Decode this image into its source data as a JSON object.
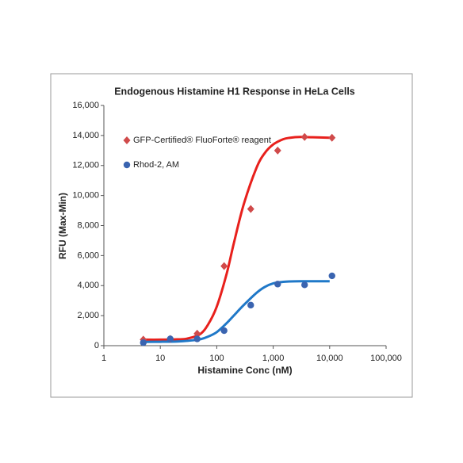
{
  "chart_data": {
    "type": "scatter",
    "title": "Endogenous Histamine H1 Response in HeLa Cells",
    "x_label": "Histamine Conc (nM)",
    "y_label": "RFU (Max-Min)",
    "x_scale": "log",
    "xlim": [
      1,
      100000
    ],
    "ylim": [
      0,
      16000
    ],
    "xticks": [
      1,
      10,
      100,
      {
        "value": 1000,
        "label": "1,000"
      },
      {
        "value": 10000,
        "label": "10,000"
      },
      {
        "value": 100000,
        "label": "100,000"
      }
    ],
    "yticks": [
      0,
      {
        "value": 2000,
        "label": "2,000"
      },
      {
        "value": 4000,
        "label": "4,000"
      },
      {
        "value": 6000,
        "label": "6,000"
      },
      {
        "value": 8000,
        "label": "8,000"
      },
      {
        "value": 10000,
        "label": "10,000"
      },
      {
        "value": 12000,
        "label": "12,000"
      },
      {
        "value": 14000,
        "label": "14,000"
      },
      {
        "value": 16000,
        "label": "16,000"
      }
    ],
    "grid": false,
    "legend": "upper left",
    "series": [
      {
        "name": "GFP-Certified® FluoForte® reagent",
        "color": "#d04a4a",
        "marker": "diamond",
        "x": [
          5,
          15,
          45,
          135,
          400,
          1200,
          3600,
          11000
        ],
        "values": [
          400,
          450,
          800,
          5300,
          9100,
          13000,
          13900,
          13850
        ]
      },
      {
        "name": "Rhod-2, AM",
        "color": "#3a64b0",
        "marker": "circle",
        "x": [
          5,
          15,
          45,
          135,
          400,
          1200,
          3600,
          11000
        ],
        "values": [
          200,
          450,
          450,
          1000,
          2700,
          4100,
          4050,
          4650
        ]
      }
    ],
    "fits": [
      {
        "color": "#e8201c",
        "x": [
          5,
          10,
          20,
          30,
          50,
          70,
          100,
          150,
          200,
          300,
          500,
          700,
          1000,
          1500,
          2000,
          3000,
          5000,
          10000
        ],
        "values": [
          400,
          400,
          420,
          470,
          750,
          1400,
          2600,
          4800,
          6800,
          9400,
          11800,
          12800,
          13400,
          13750,
          13850,
          13900,
          13880,
          13850
        ]
      },
      {
        "color": "#1f78c8",
        "x": [
          5,
          10,
          20,
          30,
          50,
          70,
          100,
          150,
          200,
          300,
          500,
          700,
          1000,
          1500,
          2000,
          3000,
          5000,
          10000
        ],
        "values": [
          250,
          260,
          280,
          320,
          420,
          600,
          900,
          1500,
          2000,
          2700,
          3500,
          3900,
          4150,
          4250,
          4280,
          4290,
          4290,
          4290
        ]
      }
    ]
  }
}
